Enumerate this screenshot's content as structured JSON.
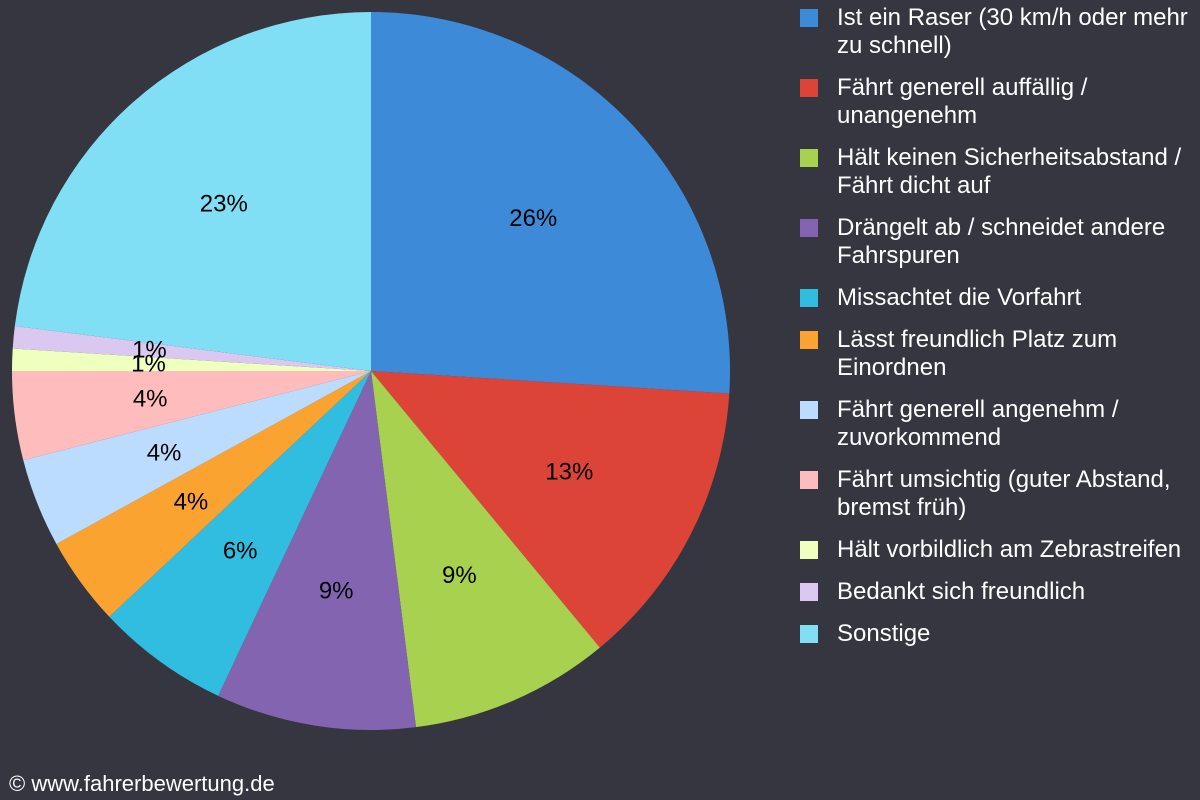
{
  "chart_data": {
    "type": "pie",
    "categories": [
      "Ist ein Raser (30 km/h oder mehr zu schnell)",
      "Fährt generell auffällig / unangenehm",
      "Hält keinen Sicherheitsabstand / Fährt dicht auf",
      "Drängelt ab / schneidet andere Fahrspuren",
      "Missachtet die Vorfahrt",
      "Lässt freundlich Platz zum Einordnen",
      "Fährt generell angenehm / zuvorkommend",
      "Fährt umsichtig (guter Abstand, bremst früh)",
      "Hält vorbildlich am Zebrastreifen",
      "Bedankt sich freundlich",
      "Sonstige"
    ],
    "values": [
      26,
      13,
      9,
      9,
      6,
      4,
      4,
      4,
      1,
      1,
      23
    ],
    "data_labels": [
      "26%",
      "13%",
      "9%",
      "9%",
      "6%",
      "4%",
      "4%",
      "4%",
      "1%",
      "1%",
      "23%"
    ],
    "colors": [
      "#3d8bd8",
      "#dd4438",
      "#a8d150",
      "#8264b0",
      "#30bde0",
      "#fba331",
      "#bcdcff",
      "#ffbcbc",
      "#efffbe",
      "#dac8f0",
      "#80dff5"
    ],
    "legend_position": "right",
    "start_angle": "12 o'clock",
    "direction": "clockwise"
  },
  "footer": {
    "copyright": "© www.fahrerbewertung.de"
  }
}
